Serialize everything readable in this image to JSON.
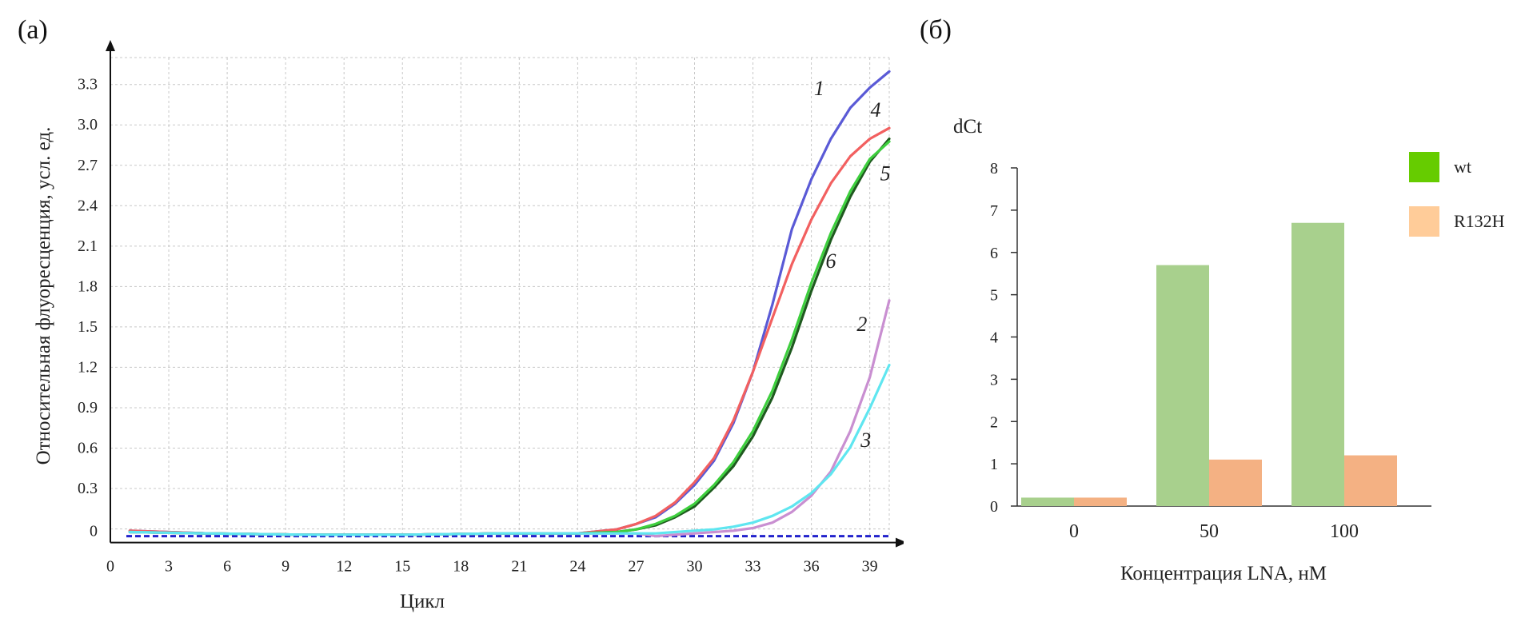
{
  "panels": {
    "a_label": "(а)",
    "b_label": "(б)"
  },
  "chart_data": [
    {
      "type": "line",
      "panel": "а",
      "title": "",
      "xlabel": "Цикл",
      "ylabel": "Относительная флуоресценция, усл. ед.",
      "xlim": [
        0,
        40
      ],
      "ylim": [
        -0.05,
        3.5
      ],
      "x_ticks": [
        0,
        3,
        6,
        9,
        12,
        15,
        18,
        21,
        24,
        27,
        30,
        33,
        36,
        39
      ],
      "y_ticks": [
        0,
        0.3,
        0.6,
        0.9,
        1.2,
        1.5,
        1.8,
        2.1,
        2.4,
        2.7,
        3.0,
        3.3
      ],
      "y_tick_labels": [
        "0",
        "0.3",
        "0.6",
        "0.9",
        "1.2",
        "1.5",
        "1.8",
        "2.1",
        "2.4",
        "2.7",
        "3.0",
        "3.3"
      ],
      "grid": true,
      "threshold": 0.0,
      "threshold_color": "#2222cc",
      "series": [
        {
          "name": "1",
          "color": "#5a5ad6",
          "x": [
            1,
            5,
            10,
            15,
            20,
            24,
            26,
            27,
            28,
            29,
            30,
            31,
            32,
            33,
            34,
            35,
            36,
            37,
            38,
            39,
            40
          ],
          "y": [
            0.04,
            0.02,
            0.01,
            0.01,
            0.02,
            0.02,
            0.05,
            0.09,
            0.14,
            0.24,
            0.38,
            0.56,
            0.84,
            1.22,
            1.72,
            2.28,
            2.65,
            2.95,
            3.18,
            3.33,
            3.45
          ]
        },
        {
          "name": "4",
          "color": "#f26060",
          "x": [
            1,
            5,
            10,
            15,
            20,
            24,
            26,
            27,
            28,
            29,
            30,
            31,
            32,
            33,
            34,
            35,
            36,
            37,
            38,
            39,
            40
          ],
          "y": [
            0.04,
            0.02,
            0.01,
            0.01,
            0.02,
            0.02,
            0.05,
            0.09,
            0.15,
            0.25,
            0.4,
            0.58,
            0.86,
            1.22,
            1.62,
            2.02,
            2.35,
            2.62,
            2.82,
            2.95,
            3.03
          ]
        },
        {
          "name": "5",
          "color": "#1f5a1f",
          "x": [
            1,
            5,
            10,
            15,
            20,
            24,
            26,
            27,
            28,
            29,
            30,
            31,
            32,
            33,
            34,
            35,
            36,
            37,
            38,
            39,
            40
          ],
          "y": [
            0.03,
            0.02,
            0.01,
            0.01,
            0.02,
            0.02,
            0.03,
            0.05,
            0.08,
            0.14,
            0.22,
            0.36,
            0.52,
            0.74,
            1.03,
            1.4,
            1.82,
            2.2,
            2.52,
            2.78,
            2.95
          ]
        },
        {
          "name": "6",
          "color": "#3ecf3e",
          "x": [
            1,
            5,
            10,
            15,
            20,
            24,
            26,
            27,
            28,
            29,
            30,
            31,
            32,
            33,
            34,
            35,
            36,
            37,
            38,
            39,
            40
          ],
          "y": [
            0.03,
            0.02,
            0.01,
            0.01,
            0.02,
            0.02,
            0.03,
            0.05,
            0.09,
            0.15,
            0.24,
            0.38,
            0.55,
            0.78,
            1.08,
            1.46,
            1.88,
            2.25,
            2.56,
            2.8,
            2.93
          ]
        },
        {
          "name": "2",
          "color": "#c98fd1",
          "x": [
            1,
            5,
            10,
            15,
            20,
            24,
            27,
            28,
            29,
            30,
            31,
            32,
            33,
            34,
            35,
            36,
            37,
            38,
            39,
            40
          ],
          "y": [
            0.03,
            0.02,
            0.01,
            0.01,
            0.02,
            0.02,
            0.02,
            0.0,
            0.01,
            0.02,
            0.03,
            0.04,
            0.06,
            0.1,
            0.18,
            0.3,
            0.48,
            0.78,
            1.18,
            1.75
          ]
        },
        {
          "name": "3",
          "color": "#5fe6f0",
          "x": [
            1,
            5,
            10,
            15,
            20,
            24,
            27,
            28,
            29,
            30,
            31,
            32,
            33,
            34,
            35,
            36,
            37,
            38,
            39,
            40
          ],
          "y": [
            0.03,
            0.02,
            0.01,
            0.01,
            0.02,
            0.02,
            0.02,
            0.02,
            0.03,
            0.04,
            0.05,
            0.07,
            0.1,
            0.15,
            0.22,
            0.32,
            0.46,
            0.66,
            0.95,
            1.27
          ]
        }
      ]
    },
    {
      "type": "bar",
      "panel": "б",
      "title": "",
      "xlabel": "Концентрация LNA, нМ",
      "ylabel": "dCt",
      "categories": [
        "0",
        "50",
        "100"
      ],
      "ylim": [
        0,
        8
      ],
      "y_ticks": [
        0,
        1,
        2,
        3,
        4,
        5,
        6,
        7,
        8
      ],
      "grid": false,
      "legend_position": "right",
      "series": [
        {
          "name": "wt",
          "color": "#a8d08d",
          "legend_color": "#66cc00",
          "values": [
            0.2,
            5.7,
            6.7
          ]
        },
        {
          "name": "R132H",
          "color": "#f4b183",
          "legend_color": "#ffcc99",
          "values": [
            0.2,
            1.1,
            1.2
          ]
        }
      ]
    }
  ]
}
